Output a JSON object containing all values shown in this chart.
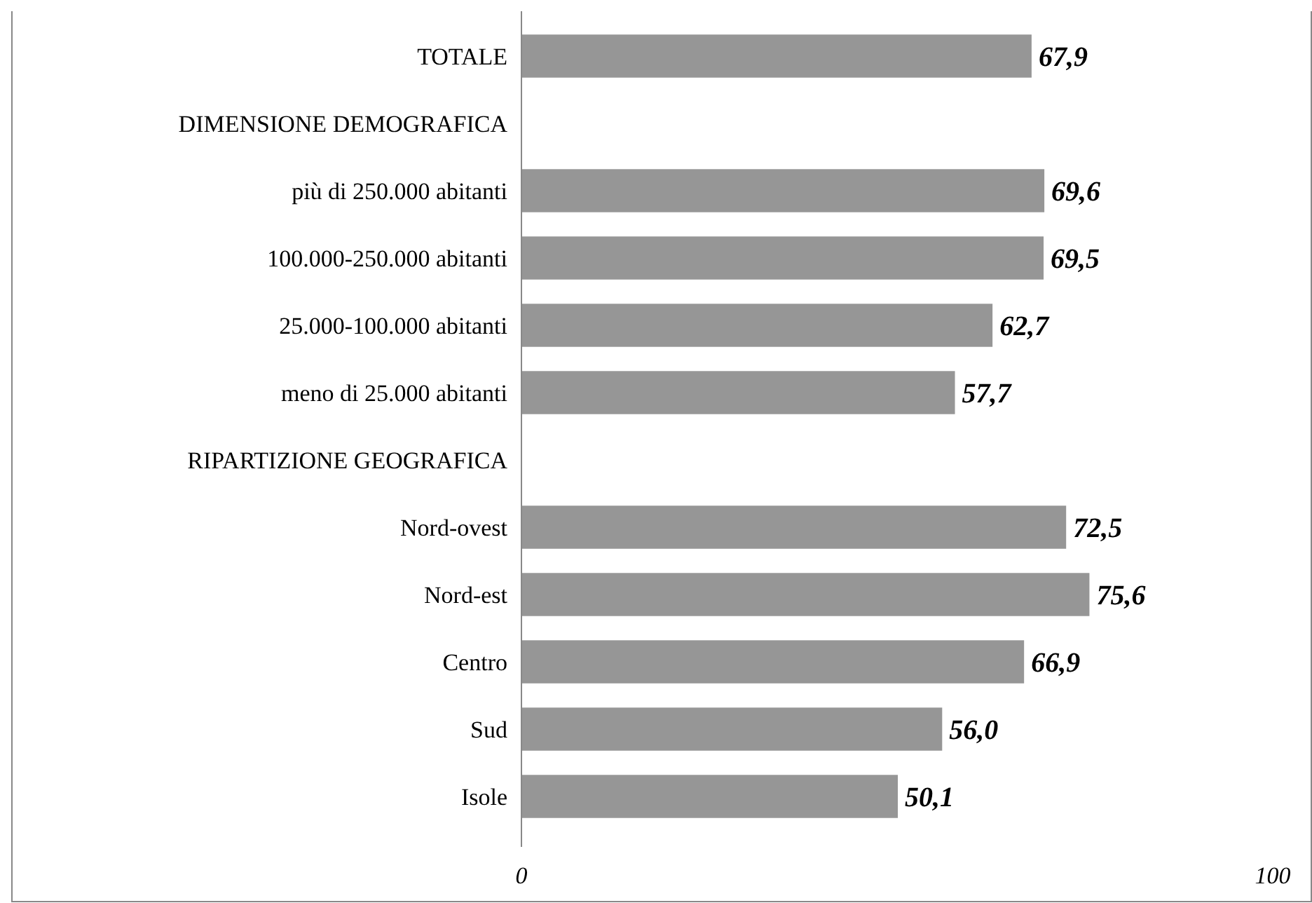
{
  "chart_data": {
    "type": "bar",
    "orientation": "horizontal",
    "categories": [
      "TOTALE",
      "DIMENSIONE DEMOGRAFICA",
      "più di 250.000 abitanti",
      "100.000-250.000 abitanti",
      "25.000-100.000 abitanti",
      "meno di 25.000 abitanti",
      "RIPARTIZIONE GEOGRAFICA",
      "Nord-ovest",
      "Nord-est",
      "Centro",
      "Sud",
      "Isole"
    ],
    "values": [
      67.9,
      null,
      69.6,
      69.5,
      62.7,
      57.7,
      null,
      72.5,
      75.6,
      66.9,
      56.0,
      50.1
    ],
    "value_labels": [
      "67,9",
      null,
      "69,6",
      "69,5",
      "62,7",
      "57,7",
      null,
      "72,5",
      "75,6",
      "66,9",
      "56,0",
      "50,1"
    ],
    "color": "#969696",
    "xlim": [
      0,
      100
    ],
    "xticks": [
      0,
      100
    ]
  }
}
